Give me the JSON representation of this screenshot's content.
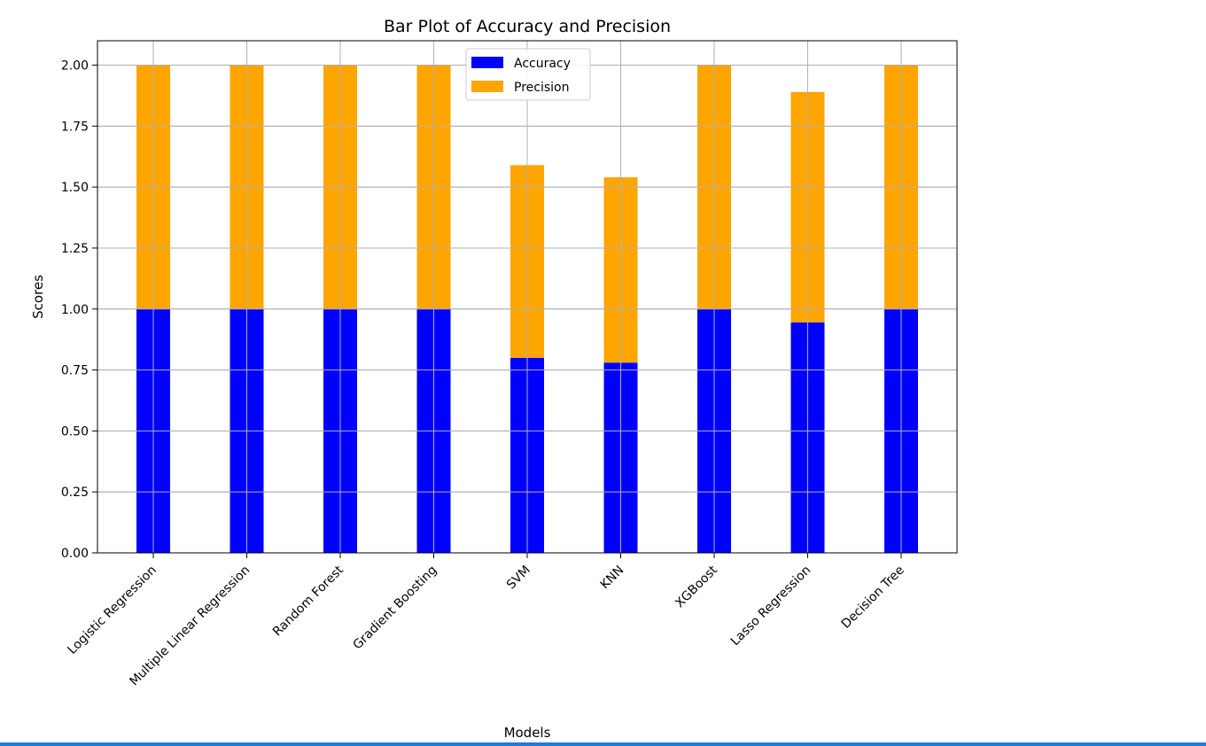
{
  "chart_data": {
    "type": "bar",
    "stacked": true,
    "title": "Bar Plot of Accuracy and Precision",
    "xlabel": "Models",
    "ylabel": "Scores",
    "categories": [
      "Logistic Regression",
      "Multiple Linear Regression",
      "Random Forest",
      "Gradient Boosting",
      "SVM",
      "KNN",
      "XGBoost",
      "Lasso Regression",
      "Decision Tree"
    ],
    "series": [
      {
        "name": "Accuracy",
        "color": "#0000ff",
        "values": [
          1.0,
          1.0,
          1.0,
          1.0,
          0.8,
          0.78,
          1.0,
          0.945,
          1.0
        ]
      },
      {
        "name": "Precision",
        "color": "#ffa500",
        "values": [
          1.0,
          1.0,
          1.0,
          1.0,
          0.79,
          0.76,
          1.0,
          0.945,
          1.0
        ]
      }
    ],
    "ylim": [
      0,
      2.1
    ],
    "yticks": [
      0.0,
      0.25,
      0.5,
      0.75,
      1.0,
      1.25,
      1.5,
      1.75,
      2.0
    ],
    "ytick_labels": [
      "0.00",
      "0.25",
      "0.50",
      "0.75",
      "1.00",
      "1.25",
      "1.50",
      "1.75",
      "2.00"
    ],
    "grid": true,
    "legend_position": "top-center",
    "xtick_rotation": -45
  },
  "colors": {
    "bottom_bar": "#1e7bd6",
    "grid": "#b0b0b0",
    "axes": "#000000"
  }
}
